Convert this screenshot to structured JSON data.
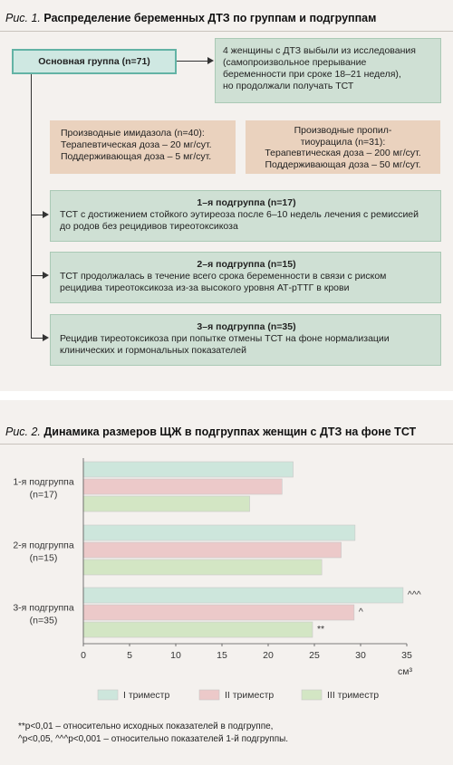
{
  "figure1": {
    "label": "Рис. 1.",
    "title": "Распределение беременных ДТЗ по группам и подгруппам",
    "main_group": "Основная группа (n=71)",
    "dropout": [
      "4 женщины с ДТЗ выбыли из исследования",
      "(самопроизвольное прерывание",
      "беременности при сроке 18–21 неделя),",
      "но продолжали получать ТСТ"
    ],
    "imidazole": [
      "Производные имидазола (n=40):",
      "Терапевтическая доза – 20 мг/сут.",
      "Поддерживающая доза – 5 мг/сут."
    ],
    "propyl": [
      "Производные пропил-",
      "тиоурацила (n=31):",
      "Терапевтическая доза – 200 мг/сут.",
      "Поддерживающая доза – 50 мг/сут."
    ],
    "subgroups": [
      {
        "title": "1–я подгруппа (n=17)",
        "lines": [
          "ТСТ с достижением стойкого эутиреоза после 6–10 недель лечения с ремиссией",
          "до родов без рецидивов тиреотоксикоза"
        ]
      },
      {
        "title": "2–я подгруппа (n=15)",
        "lines": [
          "ТСТ продолжалась в течение всего срока беременности в связи с риском",
          "рецидива тиреотоксикоза из-за высокого уровня АТ-рТТГ в крови"
        ]
      },
      {
        "title": "3–я подгруппа (n=35)",
        "lines": [
          "Рецидив тиреотоксикоза при попытке отмены ТСТ на фоне нормализации",
          "клинических и гормональных показателей"
        ]
      }
    ]
  },
  "figure2": {
    "label": "Рис. 2.",
    "title": "Динамика размеров ЩЖ в подгруппах женщин с ДТЗ на фоне ТСТ",
    "notes": [
      "**p<0,01 – относительно исходных показателей в подгруппе,",
      "^p<0,05, ^^^p<0,001 – относительно показателей 1-й подгруппы."
    ]
  },
  "chart_data": {
    "type": "bar",
    "orientation": "horizontal",
    "categories": [
      [
        "1-я подгруппа",
        "(n=17)"
      ],
      [
        "2-я подгруппа",
        "(n=15)"
      ],
      [
        "3-я подгруппа",
        "(n=35)"
      ]
    ],
    "series": [
      {
        "name": "I триместр",
        "values": [
          22.7,
          29.4,
          34.6
        ],
        "color": "#cde6dc"
      },
      {
        "name": "II триместр",
        "values": [
          21.5,
          27.9,
          29.3
        ],
        "color": "#ecc9c9"
      },
      {
        "name": "III триместр",
        "values": [
          18.0,
          25.8,
          24.8
        ],
        "color": "#d3e6c4"
      }
    ],
    "annotations": [
      {
        "category": 2,
        "series": 0,
        "text": "^^^"
      },
      {
        "category": 2,
        "series": 1,
        "text": "^"
      },
      {
        "category": 2,
        "series": 2,
        "text": "**"
      }
    ],
    "xlim": [
      0,
      35
    ],
    "xticks": [
      0,
      5,
      10,
      15,
      20,
      25,
      30,
      35
    ],
    "xlabel": "см³",
    "ylabel": "",
    "grid": false,
    "legend": "bottom"
  }
}
